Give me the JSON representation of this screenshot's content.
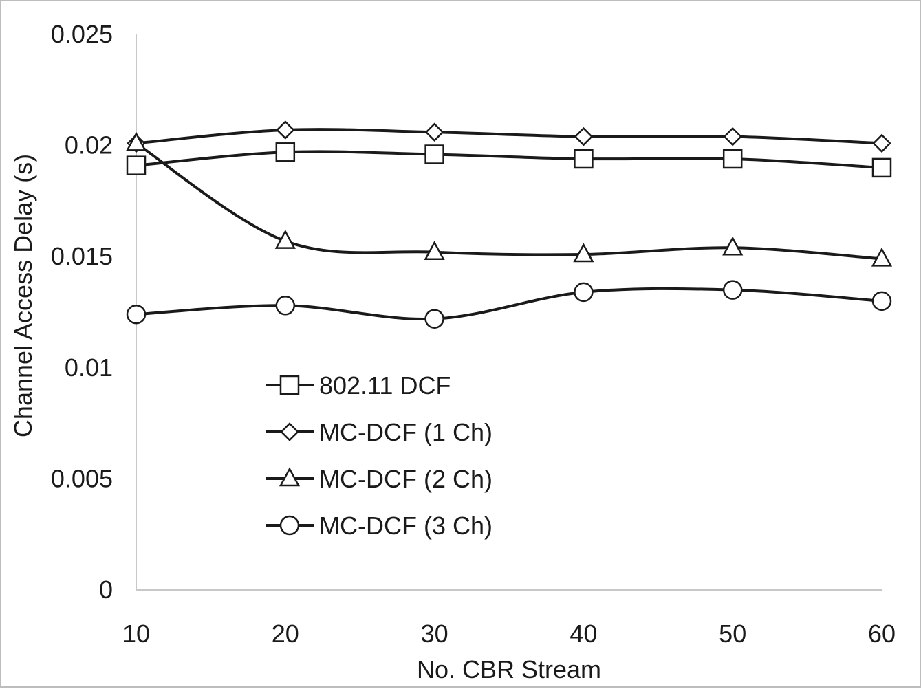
{
  "chart_data": {
    "type": "line",
    "title": "",
    "xlabel": "No. CBR Stream",
    "ylabel": "Channel Access Delay (s)",
    "x": [
      10,
      20,
      30,
      40,
      50,
      60
    ],
    "xlim": [
      10,
      60
    ],
    "ylim": [
      0,
      0.025
    ],
    "y_ticks": [
      "0",
      "0.005",
      "0.01",
      "0.015",
      "0.02",
      "0.025"
    ],
    "x_ticks": [
      "10",
      "20",
      "30",
      "40",
      "50",
      "60"
    ],
    "grid": false,
    "legend_position": "lower-left",
    "series": [
      {
        "name": "802.11 DCF",
        "marker": "square",
        "values": [
          0.0191,
          0.0197,
          0.0196,
          0.0194,
          0.0194,
          0.019
        ]
      },
      {
        "name": "MC-DCF (1 Ch)",
        "marker": "diamond",
        "values": [
          0.0201,
          0.0207,
          0.0206,
          0.0204,
          0.0204,
          0.0201
        ]
      },
      {
        "name": "MC-DCF (2 Ch)",
        "marker": "triangle",
        "values": [
          0.0201,
          0.0157,
          0.0152,
          0.0151,
          0.0154,
          0.0149
        ]
      },
      {
        "name": "MC-DCF (3 Ch)",
        "marker": "circle",
        "values": [
          0.0124,
          0.0128,
          0.0122,
          0.0134,
          0.0135,
          0.013
        ]
      }
    ]
  }
}
